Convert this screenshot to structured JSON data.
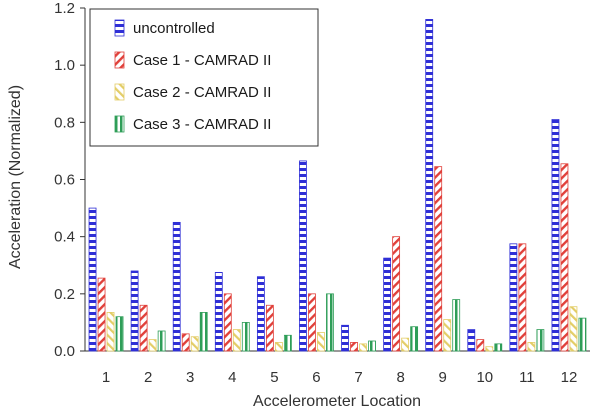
{
  "chart_data": {
    "type": "bar",
    "title": "",
    "xlabel": "Accelerometer Location",
    "ylabel": "Acceleration (Normalized)",
    "ylim": [
      0,
      1.2
    ],
    "yticks": [
      0.0,
      0.2,
      0.4,
      0.6,
      0.8,
      1.0,
      1.2
    ],
    "ytick_labels": [
      "0.0",
      "0.2",
      "0.4",
      "0.6",
      "0.8",
      "1.0",
      "1.2"
    ],
    "categories": [
      "1",
      "2",
      "3",
      "4",
      "5",
      "6",
      "7",
      "8",
      "9",
      "10",
      "11",
      "12"
    ],
    "series": [
      {
        "name": "uncontrolled",
        "values": [
          0.5,
          0.28,
          0.45,
          0.275,
          0.26,
          0.665,
          0.09,
          0.325,
          1.16,
          0.075,
          0.375,
          0.81
        ]
      },
      {
        "name": "Case 1 - CAMRAD II",
        "values": [
          0.255,
          0.16,
          0.06,
          0.2,
          0.16,
          0.2,
          0.03,
          0.4,
          0.645,
          0.04,
          0.375,
          0.655
        ]
      },
      {
        "name": "Case 2 - CAMRAD II",
        "values": [
          0.135,
          0.04,
          0.05,
          0.075,
          0.03,
          0.065,
          0.025,
          0.045,
          0.11,
          0.015,
          0.03,
          0.155
        ]
      },
      {
        "name": "Case 3 - CAMRAD II",
        "values": [
          0.12,
          0.07,
          0.135,
          0.1,
          0.055,
          0.2,
          0.035,
          0.085,
          0.18,
          0.025,
          0.075,
          0.115
        ]
      }
    ],
    "grid": false,
    "legend_position": "top-left",
    "colors": {
      "uncontrolled": "#2f2fd6",
      "case1": "#e0403a",
      "case2": "#e3cd67",
      "case3": "#2f9e58",
      "axis": "#333333"
    },
    "patterns": {
      "uncontrolled": "horizontal-stripes",
      "case1": "diagonal-hatch",
      "case2": "diagonal-hatch",
      "case3": "vertical-stripes"
    }
  }
}
